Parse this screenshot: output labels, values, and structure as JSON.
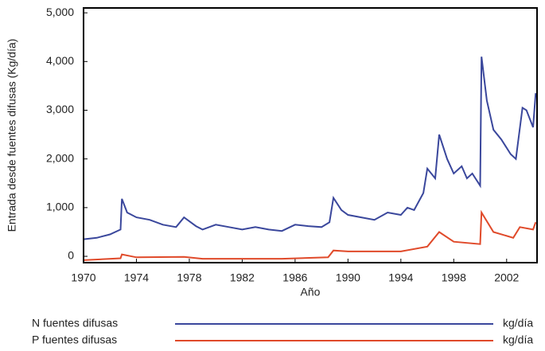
{
  "chart_data": {
    "type": "line",
    "y_label": "Entrada desde fuentes difusas (Kg/día)",
    "x_label": "Año",
    "xlim": [
      1970,
      2004.3
    ],
    "xticks": [
      1970,
      1974,
      1978,
      1982,
      1986,
      1990,
      1994,
      1998,
      2002
    ],
    "ylim": [
      -130,
      5100
    ],
    "yticks": [
      0,
      {
        "value": 1000,
        "label": "1,000"
      },
      {
        "value": 2000,
        "label": "2,000"
      },
      {
        "value": 3000,
        "label": "3,000"
      },
      {
        "value": 4000,
        "label": "4,000"
      },
      {
        "value": 5000,
        "label": "5,000"
      }
    ],
    "series": [
      {
        "name": "N fuentes difusas",
        "unit": "kg/día",
        "color": "#3a479c",
        "x": [
          1970,
          1971,
          1972,
          1972.8,
          1972.9,
          1973.3,
          1974,
          1975,
          1976,
          1977,
          1977.6,
          1978.5,
          1979,
          1980,
          1981,
          1982,
          1983,
          1984,
          1985,
          1986,
          1987,
          1988,
          1988.6,
          1988.9,
          1989.5,
          1990,
          1991,
          1992,
          1993,
          1994,
          1994.5,
          1995,
          1995.7,
          1996,
          1996.6,
          1996.9,
          1997.5,
          1998,
          1998.6,
          1999,
          1999.4,
          2000,
          2000.1,
          2000.5,
          2001,
          2001.6,
          2002.3,
          2002.7,
          2003.2,
          2003.5,
          2004,
          2004.2
        ],
        "values": [
          350,
          380,
          450,
          550,
          1180,
          900,
          800,
          750,
          650,
          600,
          800,
          620,
          550,
          650,
          600,
          550,
          600,
          550,
          520,
          650,
          620,
          600,
          700,
          1200,
          950,
          850,
          800,
          750,
          900,
          850,
          1000,
          950,
          1300,
          1800,
          1600,
          2500,
          2000,
          1700,
          1850,
          1600,
          1700,
          1450,
          4100,
          3200,
          2600,
          2400,
          2100,
          2000,
          3050,
          3000,
          2650,
          3350
        ]
      },
      {
        "name": "P fuentes difusas",
        "unit": "kg/día",
        "color": "#e04a2a",
        "x": [
          1970,
          1972.8,
          1972.9,
          1974,
          1977.6,
          1979,
          1985,
          1988.5,
          1988.9,
          1990,
          1994,
          1996,
          1996.9,
          1998,
          2000,
          2000.1,
          2001,
          2002.5,
          2003,
          2004,
          2004.2
        ],
        "values": [
          -80,
          -40,
          40,
          -20,
          -10,
          -50,
          -50,
          -20,
          120,
          100,
          100,
          200,
          500,
          300,
          250,
          900,
          500,
          380,
          600,
          550,
          700
        ]
      }
    ]
  }
}
